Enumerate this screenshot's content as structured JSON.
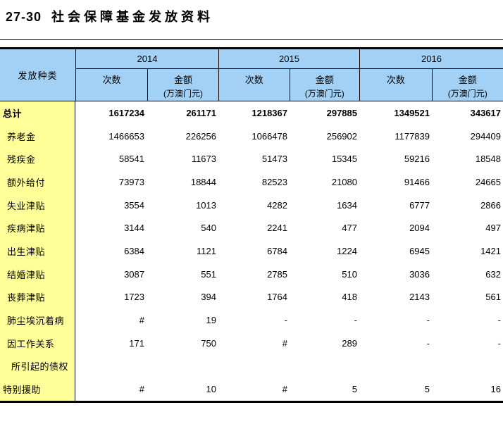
{
  "page": {
    "title_number": "27-30",
    "title_text": "社会保障基金发放资料"
  },
  "table": {
    "category_label": "发放种类",
    "count_label": "次数",
    "amount_label": "金额",
    "amount_unit": "(万澳门元)",
    "years": [
      "2014",
      "2015",
      "2016"
    ],
    "rows": [
      {
        "label": "总计",
        "indent": 0,
        "bold": true,
        "values": [
          "1617234",
          "261171",
          "1218367",
          "297885",
          "1349521",
          "343617"
        ]
      },
      {
        "label": "养老金",
        "indent": 1,
        "bold": false,
        "values": [
          "1466653",
          "226256",
          "1066478",
          "256902",
          "1177839",
          "294409"
        ]
      },
      {
        "label": "残疾金",
        "indent": 1,
        "bold": false,
        "values": [
          "58541",
          "11673",
          "51473",
          "15345",
          "59216",
          "18548"
        ]
      },
      {
        "label": "额外给付",
        "indent": 1,
        "bold": false,
        "values": [
          "73973",
          "18844",
          "82523",
          "21080",
          "91466",
          "24665"
        ]
      },
      {
        "label": "失业津贴",
        "indent": 1,
        "bold": false,
        "values": [
          "3554",
          "1013",
          "4282",
          "1634",
          "6777",
          "2866"
        ]
      },
      {
        "label": "疾病津贴",
        "indent": 1,
        "bold": false,
        "values": [
          "3144",
          "540",
          "2241",
          "477",
          "2094",
          "497"
        ]
      },
      {
        "label": "出生津贴",
        "indent": 1,
        "bold": false,
        "values": [
          "6384",
          "1121",
          "6784",
          "1224",
          "6945",
          "1421"
        ]
      },
      {
        "label": "结婚津贴",
        "indent": 1,
        "bold": false,
        "values": [
          "3087",
          "551",
          "2785",
          "510",
          "3036",
          "632"
        ]
      },
      {
        "label": "丧葬津贴",
        "indent": 1,
        "bold": false,
        "values": [
          "1723",
          "394",
          "1764",
          "418",
          "2143",
          "561"
        ]
      },
      {
        "label": "肺尘埃沉着病",
        "indent": 1,
        "bold": false,
        "values": [
          "#",
          "19",
          "-",
          "-",
          "-",
          "-"
        ]
      },
      {
        "label": "因工作关系",
        "indent": 1,
        "bold": false,
        "values": [
          "171",
          "750",
          "#",
          "289",
          "-",
          "-"
        ]
      },
      {
        "label": "所引起的债权",
        "indent": 2,
        "bold": false,
        "values": [
          "",
          "",
          "",
          "",
          "",
          ""
        ]
      },
      {
        "label": "特别援助",
        "indent": 0,
        "bold": false,
        "values": [
          "#",
          "10",
          "#",
          "5",
          "5",
          "16"
        ]
      }
    ]
  },
  "colors": {
    "header_bg": "#a3d1f5",
    "label_bg": "#ffff99",
    "border": "#000000"
  }
}
